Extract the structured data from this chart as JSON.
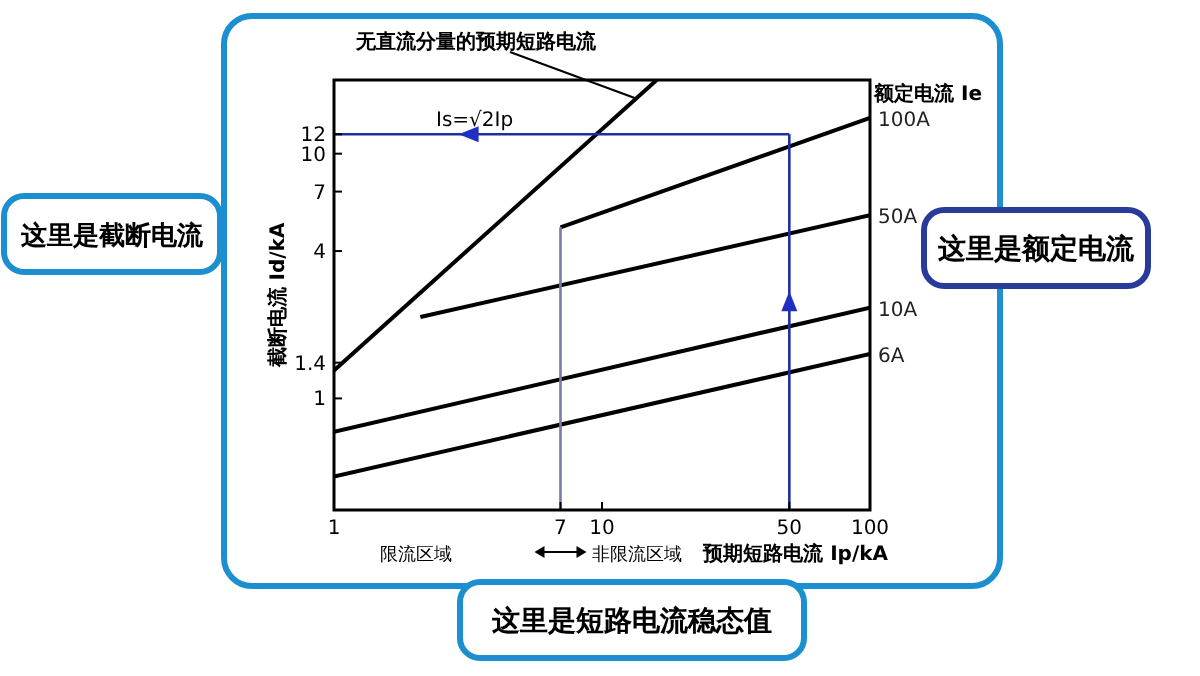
{
  "chart_data": {
    "type": "line",
    "xlabel": "预期短路电流 Ip/kA",
    "ylabel": "截断电流 Id/kA",
    "legend_title": "额定电流 Ie",
    "log": "xy",
    "xlim": [
      1,
      100
    ],
    "ylim": [
      0.35,
      20
    ],
    "xticks": [
      1,
      7,
      10,
      50,
      100
    ],
    "yticks": [
      1,
      1.4,
      4,
      7,
      10,
      12
    ],
    "grid": false,
    "legend": false,
    "marker": "none",
    "line_style": "solid",
    "series": [
      {
        "x": [
          1,
          16
        ],
        "values": [
          1.3,
          20
        ],
        "color": "#000000"
      },
      {
        "name": "100A",
        "x": [
          7,
          100
        ],
        "values": [
          5.0,
          14
        ],
        "color": "#000000"
      },
      {
        "name": "50A",
        "x": [
          2.1,
          100
        ],
        "values": [
          2.15,
          5.6
        ],
        "color": "#000000"
      },
      {
        "name": "10A",
        "x": [
          1,
          100
        ],
        "values": [
          0.73,
          2.35
        ],
        "color": "#000000"
      },
      {
        "name": "6A",
        "x": [
          1,
          100
        ],
        "values": [
          0.48,
          1.52
        ],
        "color": "#000000"
      },
      {
        "x": [
          7,
          7
        ],
        "values": [
          0.35,
          5.0
        ],
        "color": "#7a7aa8"
      },
      {
        "x": [
          50,
          50
        ],
        "values": [
          0.35,
          12
        ],
        "color": "#1f2f9f"
      },
      {
        "x": [
          50,
          1
        ],
        "values": [
          12,
          12
        ],
        "color": "#1f2f9f"
      }
    ],
    "annotations": [
      {
        "text": "无直流分量的预期短路电流",
        "x": 13.4,
        "y": 16.8
      },
      "Is=√2Ip",
      "限流区域",
      "非限流区域",
      "这里是截断电流",
      "这里是额定电流",
      "这里是短路电流稳态值"
    ]
  }
}
